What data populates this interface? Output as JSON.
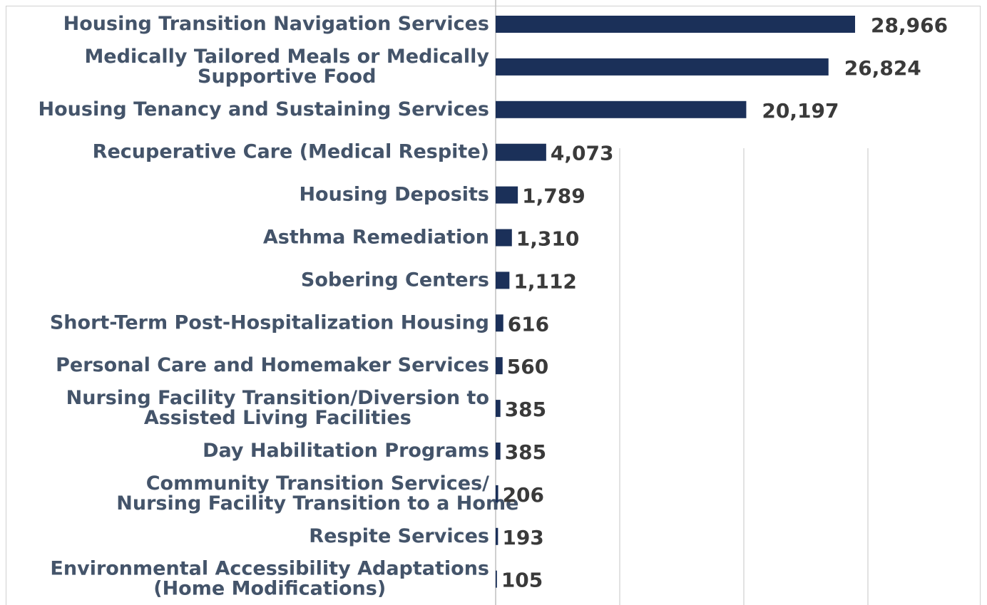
{
  "chart_data": {
    "type": "bar",
    "orientation": "horizontal",
    "categories": [
      [
        "Housing Transition Navigation Services"
      ],
      [
        "Medically Tailored Meals or Medically",
        "Supportive Food"
      ],
      [
        "Housing Tenancy and Sustaining Services"
      ],
      [
        "Recuperative Care (Medical Respite)"
      ],
      [
        "Housing Deposits"
      ],
      [
        "Asthma Remediation"
      ],
      [
        "Sobering Centers"
      ],
      [
        "Short-Term Post-Hospitalization Housing"
      ],
      [
        "Personal Care and Homemaker Services"
      ],
      [
        "Nursing Facility Transition/Diversion to",
        "Assisted Living Facilities"
      ],
      [
        "Day Habilitation Programs"
      ],
      [
        "Community Transition Services/",
        "Nursing Facility Transition to a Home"
      ],
      [
        "Respite Services"
      ],
      [
        "Environmental Accessibility Adaptations",
        "(Home Modifications)"
      ]
    ],
    "values": [
      28966,
      26824,
      20197,
      4073,
      1789,
      1310,
      1112,
      616,
      560,
      385,
      385,
      206,
      193,
      105
    ],
    "value_labels": [
      "28,966",
      "26,824",
      "20,197",
      "4,073",
      "1,789",
      "1,310",
      "1,112",
      "616",
      "560",
      "385",
      "385",
      "206",
      "193",
      "105"
    ],
    "color": "#1b3059",
    "xlim": [
      0,
      30000
    ],
    "xticks": [
      0,
      10000,
      20000,
      30000
    ],
    "grid": true
  }
}
